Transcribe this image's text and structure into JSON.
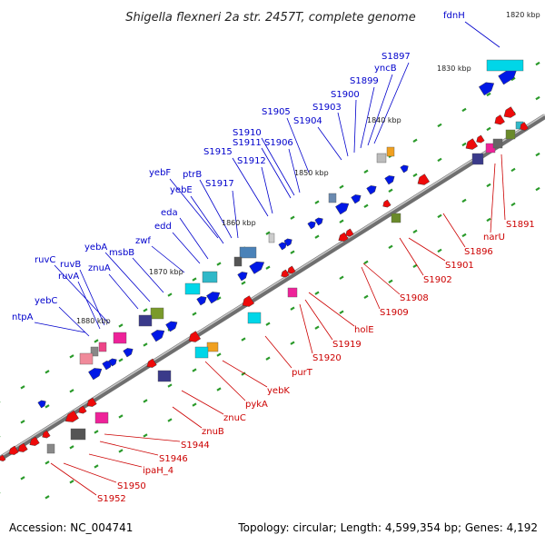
{
  "title": "Shigella flexneri 2a str. 2457T, complete genome",
  "footer": {
    "accession": "Accession: NC_004741",
    "summary": "Topology: circular; Length: 4,599,354 bp; Genes: 4,192"
  },
  "colors": {
    "forward_label": "#0000cc",
    "reverse_label": "#cc0000",
    "forward_gene": "#0000ee",
    "reverse_gene": "#ee0000",
    "backbone": "#777777"
  },
  "ticks": [
    {
      "label": "1820 kbp"
    },
    {
      "label": "1830 kbp"
    },
    {
      "label": "1840 kbp"
    },
    {
      "label": "1850 kbp"
    },
    {
      "label": "1860 kbp"
    },
    {
      "label": "1870 kbp"
    },
    {
      "label": "1880 kbp"
    }
  ],
  "forward_labels": [
    {
      "text": "fdnH"
    },
    {
      "text": "S1897"
    },
    {
      "text": "yncB"
    },
    {
      "text": "S1899"
    },
    {
      "text": "S1900"
    },
    {
      "text": "S1903"
    },
    {
      "text": "S1904"
    },
    {
      "text": "S1905"
    },
    {
      "text": "S1906"
    },
    {
      "text": "S1910"
    },
    {
      "text": "S1911"
    },
    {
      "text": "S1912"
    },
    {
      "text": "S1915"
    },
    {
      "text": "S1917"
    },
    {
      "text": "yebF"
    },
    {
      "text": "yebE"
    },
    {
      "text": "ptrB"
    },
    {
      "text": "eda"
    },
    {
      "text": "edd"
    },
    {
      "text": "zwf"
    },
    {
      "text": "yebA"
    },
    {
      "text": "msbB"
    },
    {
      "text": "znuA"
    },
    {
      "text": "ruvC"
    },
    {
      "text": "ruvB"
    },
    {
      "text": "ruvA"
    },
    {
      "text": "yebC"
    },
    {
      "text": "ntpA"
    }
  ],
  "reverse_labels": [
    {
      "text": "S1891"
    },
    {
      "text": "narU"
    },
    {
      "text": "S1896"
    },
    {
      "text": "S1901"
    },
    {
      "text": "S1902"
    },
    {
      "text": "S1908"
    },
    {
      "text": "S1909"
    },
    {
      "text": "holE"
    },
    {
      "text": "S1919"
    },
    {
      "text": "S1920"
    },
    {
      "text": "purT"
    },
    {
      "text": "yebK"
    },
    {
      "text": "pykA"
    },
    {
      "text": "znuC"
    },
    {
      "text": "znuB"
    },
    {
      "text": "S1944"
    },
    {
      "text": "S1946"
    },
    {
      "text": "ipaH_4"
    },
    {
      "text": "S1950"
    },
    {
      "text": "S1952"
    }
  ]
}
